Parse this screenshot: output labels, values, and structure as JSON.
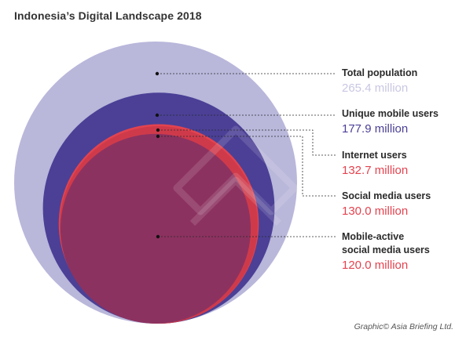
{
  "title": "Indonesia’s Digital Landscape 2018",
  "credit": "Graphic© Asia Briefing Ltd.",
  "chart_data": {
    "type": "nested-circles",
    "unit": "million",
    "series": [
      {
        "name": "Total population",
        "value": 265.4,
        "value_label": "265.4 million",
        "color": "#b9b7da",
        "text_color": "#c9c7e2"
      },
      {
        "name": "Unique mobile users",
        "value": 177.9,
        "value_label": "177.9 million",
        "color": "#4b4096",
        "text_color": "#4b4096"
      },
      {
        "name": "Internet users",
        "value": 132.7,
        "value_label": "132.7 million",
        "color": "#e3434f",
        "text_color": "#e3434f"
      },
      {
        "name": "Social media users",
        "value": 130.0,
        "value_label": "130.0 million",
        "color": "#cf3a4b",
        "text_color": "#e3434f"
      },
      {
        "name": "Mobile-active\nsocial media users",
        "value": 120.0,
        "value_label": "120.0 million",
        "color": "#8c3260",
        "text_color": "#e3434f"
      }
    ]
  }
}
